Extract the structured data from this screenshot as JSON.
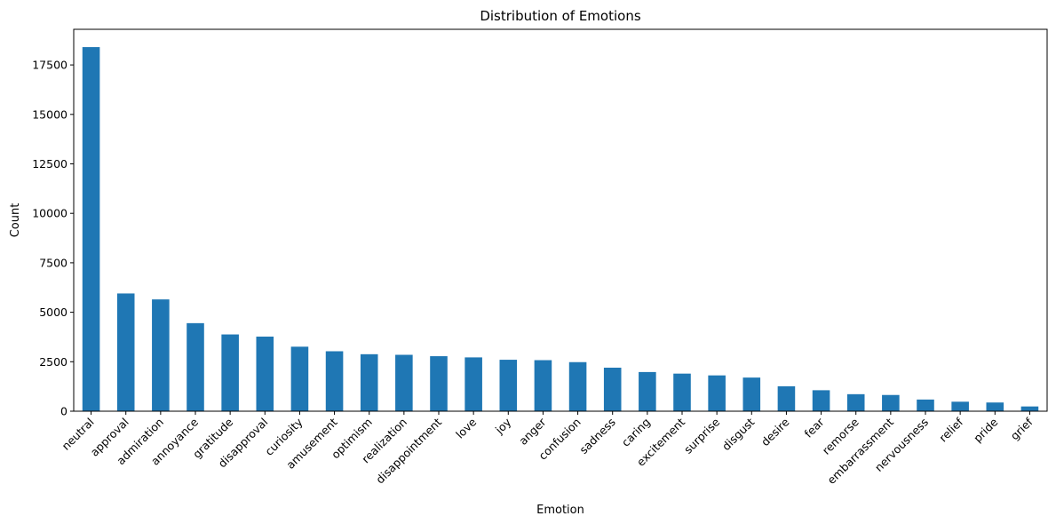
{
  "chart_data": {
    "type": "bar",
    "title": "Distribution of Emotions",
    "xlabel": "Emotion",
    "ylabel": "Count",
    "ylim": [
      0,
      19300
    ],
    "yticks": [
      0,
      2500,
      5000,
      7500,
      10000,
      12500,
      15000,
      17500
    ],
    "grid": false,
    "bar_color": "#1f77b4",
    "categories": [
      "neutral",
      "approval",
      "admiration",
      "annoyance",
      "gratitude",
      "disapproval",
      "curiosity",
      "amusement",
      "optimism",
      "realization",
      "disappointment",
      "love",
      "joy",
      "anger",
      "confusion",
      "sadness",
      "caring",
      "excitement",
      "surprise",
      "disgust",
      "desire",
      "fear",
      "remorse",
      "embarrassment",
      "nervousness",
      "relief",
      "pride",
      "grief"
    ],
    "values": [
      18400,
      5950,
      5650,
      4450,
      3880,
      3770,
      3260,
      3030,
      2880,
      2850,
      2780,
      2720,
      2600,
      2580,
      2480,
      2200,
      1980,
      1900,
      1810,
      1700,
      1260,
      1060,
      860,
      820,
      590,
      480,
      440,
      240
    ]
  }
}
